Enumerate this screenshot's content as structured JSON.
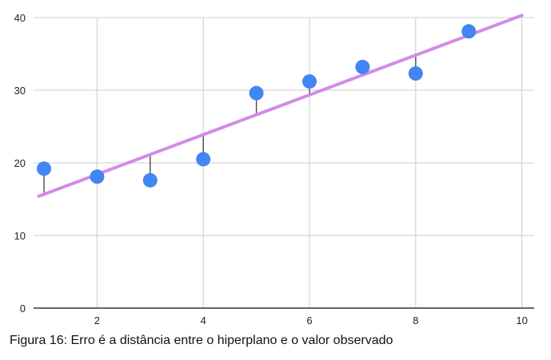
{
  "caption": "Figura 16: Erro é a distância entre o hiperplano e o valor observado",
  "chart_data": {
    "type": "scatter",
    "title": "",
    "xlabel": "",
    "ylabel": "",
    "xlim": [
      0.9,
      10.1
    ],
    "ylim": [
      0,
      40
    ],
    "x_ticks": [
      2,
      4,
      6,
      8,
      10
    ],
    "y_ticks": [
      0,
      10,
      20,
      30,
      40
    ],
    "grid": true,
    "legend": "none",
    "points": [
      {
        "x": 1,
        "y": 19.2
      },
      {
        "x": 2,
        "y": 18.1
      },
      {
        "x": 3,
        "y": 17.6
      },
      {
        "x": 4,
        "y": 20.5
      },
      {
        "x": 5,
        "y": 29.6
      },
      {
        "x": 6,
        "y": 31.2
      },
      {
        "x": 7,
        "y": 33.2
      },
      {
        "x": 8,
        "y": 32.3
      },
      {
        "x": 9,
        "y": 38.1
      }
    ],
    "fit_line": {
      "x": [
        0.9,
        10
      ],
      "y": [
        15.4,
        40.3
      ]
    },
    "colors": {
      "point": "#4285f4",
      "fit_line": "#d48be8",
      "residual": "#555555",
      "grid": "#cccccc",
      "axis": "#333333"
    }
  }
}
